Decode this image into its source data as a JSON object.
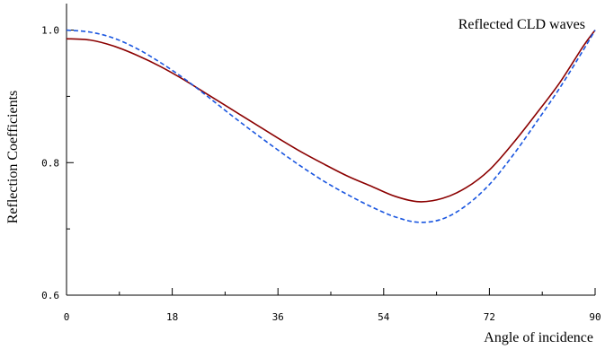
{
  "chart_data": {
    "type": "line",
    "xlabel": "Angle of incidence",
    "ylabel": "Reflection Coefficients",
    "xlim": [
      0,
      90
    ],
    "ylim": [
      0.6,
      1.04
    ],
    "x_ticks": [
      "0",
      "18",
      "36",
      "54",
      "72",
      "90"
    ],
    "y_ticks": [
      "0.6",
      "0.8",
      "1.0"
    ],
    "grid": false,
    "annotation": "Reflected CLD waves",
    "series": [
      {
        "color": "#8b0000",
        "style": "solid",
        "x": [
          0,
          4,
          8,
          12,
          16,
          20,
          24,
          28,
          32,
          36,
          40,
          44,
          48,
          52,
          56,
          60,
          64,
          68,
          72,
          76,
          80,
          84,
          88,
          90
        ],
        "y": [
          0.987,
          0.985,
          0.976,
          0.962,
          0.945,
          0.925,
          0.903,
          0.881,
          0.859,
          0.837,
          0.816,
          0.797,
          0.779,
          0.764,
          0.749,
          0.741,
          0.746,
          0.762,
          0.789,
          0.829,
          0.874,
          0.921,
          0.976,
          1.0
        ]
      },
      {
        "color": "#1a56e0",
        "style": "dashed",
        "x": [
          0,
          4,
          8,
          12,
          16,
          20,
          24,
          28,
          32,
          36,
          40,
          44,
          48,
          52,
          56,
          60,
          64,
          68,
          72,
          76,
          80,
          84,
          88,
          90
        ],
        "y": [
          1.0,
          0.997,
          0.988,
          0.972,
          0.951,
          0.927,
          0.9,
          0.872,
          0.845,
          0.819,
          0.794,
          0.771,
          0.751,
          0.733,
          0.718,
          0.71,
          0.715,
          0.735,
          0.767,
          0.811,
          0.861,
          0.913,
          0.97,
          1.0
        ]
      }
    ]
  }
}
